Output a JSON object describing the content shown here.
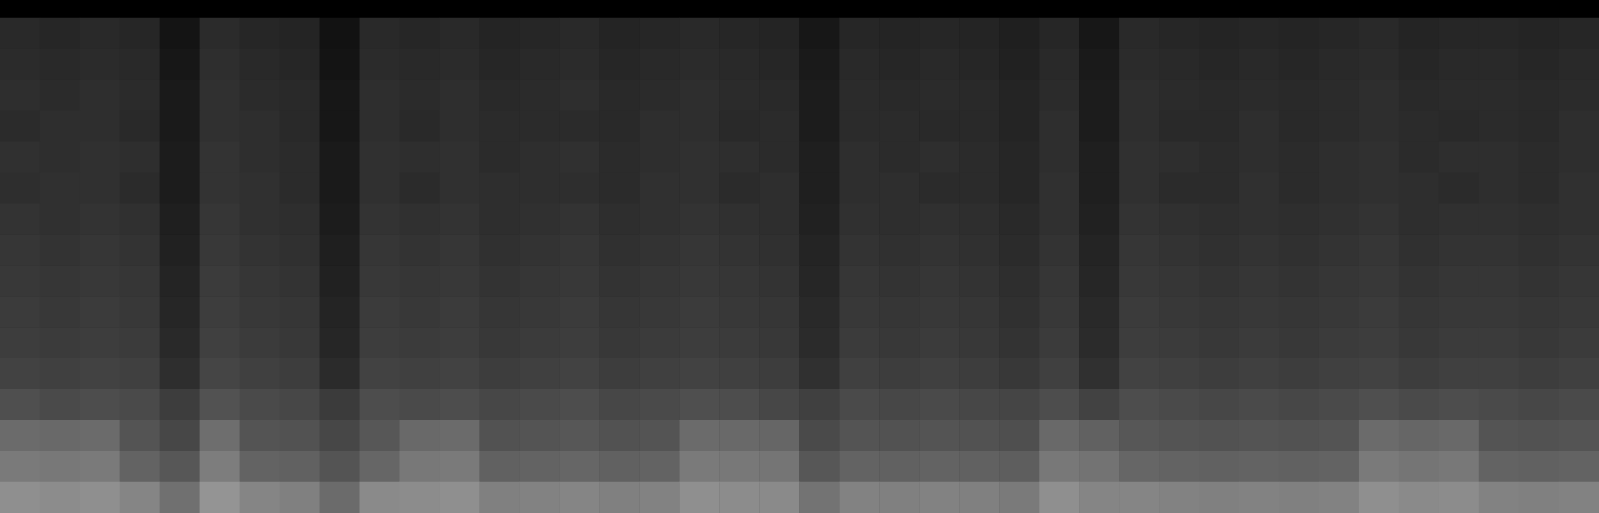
{
  "chart_data": {
    "type": "heatmap",
    "grid": false,
    "tick_labels": false,
    "zlim": [
      0,
      1
    ],
    "cells": [
      [
        0.16,
        0.15,
        0.16,
        0.15,
        0.08,
        0.17,
        0.15,
        0.14,
        0.07,
        0.16,
        0.15,
        0.16,
        0.14,
        0.15,
        0.16,
        0.14,
        0.15,
        0.16,
        0.15,
        0.14,
        0.09,
        0.15,
        0.14,
        0.15,
        0.14,
        0.12,
        0.15,
        0.09,
        0.16,
        0.15,
        0.14,
        0.15,
        0.14,
        0.15,
        0.16,
        0.14,
        0.15,
        0.15,
        0.14,
        0.15
      ],
      [
        0.17,
        0.16,
        0.17,
        0.16,
        0.09,
        0.18,
        0.16,
        0.15,
        0.08,
        0.17,
        0.16,
        0.17,
        0.15,
        0.16,
        0.17,
        0.15,
        0.16,
        0.17,
        0.16,
        0.15,
        0.1,
        0.16,
        0.15,
        0.16,
        0.15,
        0.13,
        0.16,
        0.1,
        0.17,
        0.16,
        0.15,
        0.16,
        0.15,
        0.16,
        0.17,
        0.15,
        0.16,
        0.16,
        0.15,
        0.16
      ],
      [
        0.18,
        0.17,
        0.18,
        0.17,
        0.1,
        0.19,
        0.17,
        0.16,
        0.09,
        0.18,
        0.17,
        0.18,
        0.16,
        0.17,
        0.18,
        0.16,
        0.17,
        0.18,
        0.17,
        0.16,
        0.11,
        0.17,
        0.16,
        0.17,
        0.16,
        0.14,
        0.17,
        0.11,
        0.18,
        0.17,
        0.16,
        0.17,
        0.16,
        0.17,
        0.18,
        0.16,
        0.17,
        0.17,
        0.16,
        0.17
      ],
      [
        0.17,
        0.18,
        0.18,
        0.16,
        0.1,
        0.19,
        0.18,
        0.16,
        0.09,
        0.18,
        0.16,
        0.18,
        0.17,
        0.17,
        0.17,
        0.16,
        0.18,
        0.18,
        0.16,
        0.17,
        0.11,
        0.17,
        0.17,
        0.16,
        0.16,
        0.14,
        0.18,
        0.11,
        0.18,
        0.16,
        0.16,
        0.18,
        0.16,
        0.17,
        0.18,
        0.17,
        0.16,
        0.17,
        0.16,
        0.18
      ],
      [
        0.19,
        0.18,
        0.19,
        0.18,
        0.11,
        0.2,
        0.18,
        0.17,
        0.1,
        0.19,
        0.18,
        0.19,
        0.17,
        0.18,
        0.19,
        0.17,
        0.18,
        0.19,
        0.18,
        0.17,
        0.12,
        0.18,
        0.17,
        0.18,
        0.17,
        0.15,
        0.18,
        0.12,
        0.19,
        0.18,
        0.17,
        0.18,
        0.17,
        0.18,
        0.19,
        0.17,
        0.18,
        0.18,
        0.17,
        0.18
      ],
      [
        0.18,
        0.19,
        0.19,
        0.17,
        0.11,
        0.2,
        0.19,
        0.17,
        0.1,
        0.19,
        0.17,
        0.19,
        0.18,
        0.18,
        0.18,
        0.17,
        0.19,
        0.19,
        0.17,
        0.18,
        0.12,
        0.18,
        0.18,
        0.17,
        0.17,
        0.15,
        0.19,
        0.12,
        0.19,
        0.17,
        0.17,
        0.19,
        0.17,
        0.18,
        0.19,
        0.18,
        0.17,
        0.18,
        0.17,
        0.19
      ],
      [
        0.2,
        0.19,
        0.2,
        0.19,
        0.12,
        0.21,
        0.19,
        0.18,
        0.11,
        0.2,
        0.19,
        0.2,
        0.18,
        0.19,
        0.2,
        0.18,
        0.19,
        0.2,
        0.19,
        0.18,
        0.13,
        0.19,
        0.18,
        0.19,
        0.18,
        0.16,
        0.19,
        0.13,
        0.2,
        0.19,
        0.18,
        0.19,
        0.18,
        0.19,
        0.2,
        0.18,
        0.19,
        0.19,
        0.18,
        0.19
      ],
      [
        0.21,
        0.2,
        0.21,
        0.2,
        0.13,
        0.22,
        0.2,
        0.19,
        0.12,
        0.21,
        0.2,
        0.21,
        0.19,
        0.2,
        0.21,
        0.19,
        0.2,
        0.21,
        0.2,
        0.19,
        0.14,
        0.2,
        0.19,
        0.2,
        0.19,
        0.17,
        0.2,
        0.14,
        0.21,
        0.2,
        0.19,
        0.2,
        0.19,
        0.2,
        0.21,
        0.19,
        0.2,
        0.2,
        0.19,
        0.2
      ],
      [
        0.22,
        0.21,
        0.22,
        0.21,
        0.14,
        0.23,
        0.21,
        0.2,
        0.13,
        0.22,
        0.21,
        0.22,
        0.2,
        0.21,
        0.22,
        0.2,
        0.21,
        0.22,
        0.21,
        0.2,
        0.15,
        0.21,
        0.2,
        0.21,
        0.2,
        0.18,
        0.21,
        0.15,
        0.22,
        0.21,
        0.2,
        0.21,
        0.2,
        0.21,
        0.22,
        0.2,
        0.21,
        0.21,
        0.2,
        0.21
      ],
      [
        0.23,
        0.22,
        0.23,
        0.22,
        0.15,
        0.24,
        0.22,
        0.21,
        0.14,
        0.23,
        0.22,
        0.23,
        0.21,
        0.22,
        0.23,
        0.21,
        0.22,
        0.23,
        0.22,
        0.21,
        0.16,
        0.22,
        0.21,
        0.22,
        0.21,
        0.19,
        0.22,
        0.16,
        0.23,
        0.22,
        0.21,
        0.22,
        0.21,
        0.22,
        0.23,
        0.21,
        0.22,
        0.22,
        0.21,
        0.22
      ],
      [
        0.24,
        0.23,
        0.24,
        0.23,
        0.16,
        0.25,
        0.23,
        0.22,
        0.15,
        0.24,
        0.23,
        0.24,
        0.22,
        0.23,
        0.24,
        0.22,
        0.23,
        0.24,
        0.23,
        0.22,
        0.17,
        0.23,
        0.22,
        0.23,
        0.22,
        0.2,
        0.23,
        0.17,
        0.24,
        0.23,
        0.22,
        0.23,
        0.22,
        0.23,
        0.24,
        0.22,
        0.23,
        0.23,
        0.22,
        0.23
      ],
      [
        0.26,
        0.25,
        0.26,
        0.25,
        0.18,
        0.27,
        0.25,
        0.24,
        0.17,
        0.26,
        0.25,
        0.26,
        0.24,
        0.25,
        0.26,
        0.24,
        0.25,
        0.26,
        0.25,
        0.24,
        0.19,
        0.25,
        0.24,
        0.25,
        0.24,
        0.22,
        0.25,
        0.19,
        0.26,
        0.25,
        0.24,
        0.25,
        0.24,
        0.25,
        0.26,
        0.24,
        0.25,
        0.25,
        0.24,
        0.25
      ],
      [
        0.31,
        0.29,
        0.3,
        0.29,
        0.24,
        0.32,
        0.29,
        0.28,
        0.23,
        0.3,
        0.29,
        0.3,
        0.28,
        0.29,
        0.3,
        0.28,
        0.29,
        0.31,
        0.3,
        0.28,
        0.25,
        0.29,
        0.28,
        0.29,
        0.28,
        0.27,
        0.3,
        0.26,
        0.3,
        0.29,
        0.28,
        0.29,
        0.28,
        0.29,
        0.31,
        0.29,
        0.3,
        0.29,
        0.28,
        0.29
      ],
      [
        0.42,
        0.41,
        0.42,
        0.33,
        0.28,
        0.43,
        0.33,
        0.32,
        0.28,
        0.34,
        0.41,
        0.42,
        0.32,
        0.33,
        0.34,
        0.32,
        0.33,
        0.42,
        0.41,
        0.4,
        0.29,
        0.33,
        0.32,
        0.33,
        0.32,
        0.31,
        0.41,
        0.38,
        0.34,
        0.33,
        0.32,
        0.33,
        0.32,
        0.33,
        0.42,
        0.4,
        0.41,
        0.33,
        0.32,
        0.33
      ],
      [
        0.48,
        0.47,
        0.48,
        0.39,
        0.34,
        0.49,
        0.39,
        0.38,
        0.33,
        0.4,
        0.47,
        0.48,
        0.38,
        0.39,
        0.4,
        0.38,
        0.39,
        0.48,
        0.47,
        0.46,
        0.34,
        0.39,
        0.38,
        0.39,
        0.38,
        0.37,
        0.47,
        0.45,
        0.4,
        0.39,
        0.38,
        0.39,
        0.38,
        0.39,
        0.48,
        0.46,
        0.47,
        0.39,
        0.38,
        0.39
      ],
      [
        0.56,
        0.55,
        0.56,
        0.52,
        0.44,
        0.58,
        0.52,
        0.5,
        0.42,
        0.54,
        0.55,
        0.56,
        0.5,
        0.51,
        0.52,
        0.5,
        0.51,
        0.56,
        0.55,
        0.54,
        0.45,
        0.51,
        0.5,
        0.51,
        0.5,
        0.48,
        0.56,
        0.52,
        0.52,
        0.51,
        0.5,
        0.51,
        0.5,
        0.51,
        0.56,
        0.54,
        0.55,
        0.51,
        0.5,
        0.51
      ]
    ]
  }
}
